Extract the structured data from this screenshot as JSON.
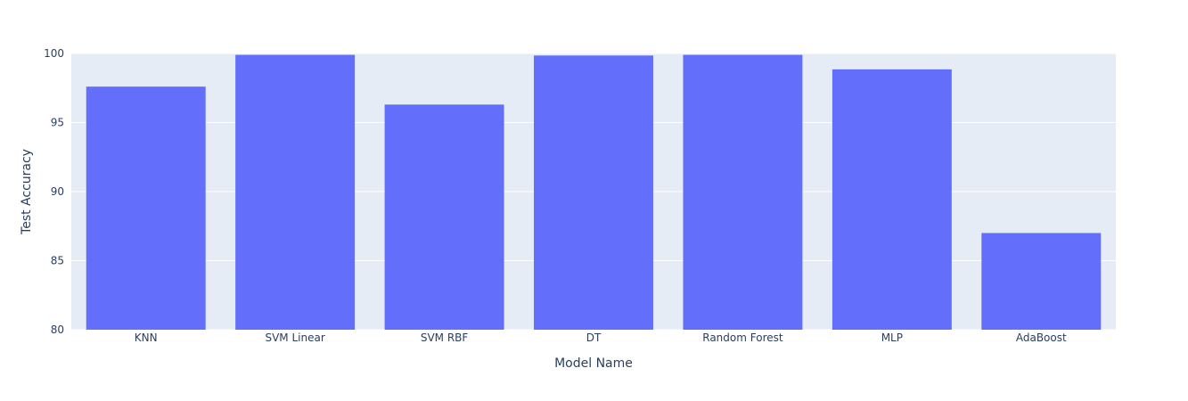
{
  "chart_data": {
    "type": "bar",
    "title": "",
    "xlabel": "Model Name",
    "ylabel": "Test Accuracy",
    "categories": [
      "KNN",
      "SVM Linear",
      "SVM RBF",
      "DT",
      "Random Forest",
      "MLP",
      "AdaBoost"
    ],
    "values": [
      97.6,
      99.9,
      96.3,
      99.85,
      99.9,
      98.85,
      87.0
    ],
    "ylim": [
      80,
      100
    ],
    "yticks": [
      80,
      85,
      90,
      95,
      100
    ],
    "grid": true,
    "legend": "none",
    "colors": {
      "bar": "#636efa",
      "plot_bg": "#e5ecf6",
      "grid": "#ffffff",
      "text": "#2a3f5f"
    }
  }
}
